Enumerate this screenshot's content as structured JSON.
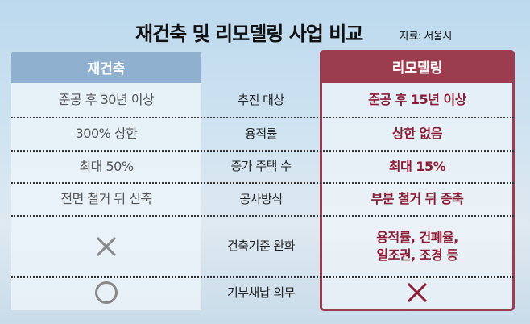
{
  "title": "재건축 및 리모델링 사업 비교",
  "source": "자료: 서울시",
  "columns": {
    "left": "재건축",
    "right": "리모델링"
  },
  "colors": {
    "left_header": "#8fb1cf",
    "right_header": "#9c3d4f",
    "right_text": "#8b1c33"
  },
  "rows": [
    {
      "label": "추진 대상",
      "reconstruction": "준공 후 30년 이상",
      "remodeling": "준공 후 15년 이상"
    },
    {
      "label": "용적률",
      "reconstruction": "300% 상한",
      "remodeling": "상한 없음"
    },
    {
      "label": "증가 주택 수",
      "reconstruction": "최대 50%",
      "remodeling": "최대 15%"
    },
    {
      "label": "공사방식",
      "reconstruction": "전면 철거 뒤 신축",
      "remodeling": "부분 철거 뒤 증축"
    },
    {
      "label": "건축기준 완화",
      "reconstruction_icon": "x-mark-icon",
      "remodeling": "용적률, 건폐율,\n일조권, 조경 등"
    },
    {
      "label": "기부채납 의무",
      "reconstruction_icon": "circle-icon",
      "remodeling_icon": "x-mark-icon"
    }
  ]
}
